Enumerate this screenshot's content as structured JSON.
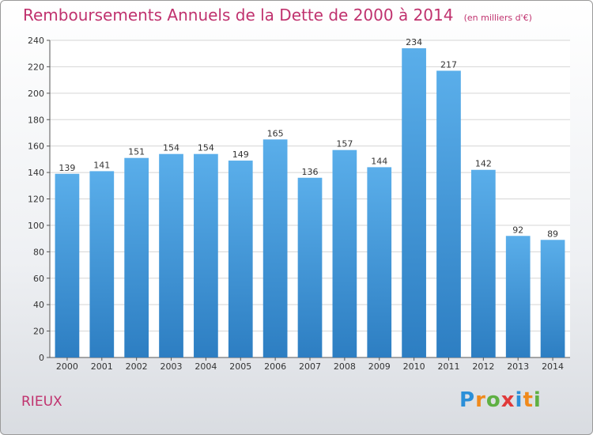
{
  "header": {
    "title": "Remboursements Annuels de la Dette de 2000 à 2014",
    "subtitle": "(en milliers d'€)"
  },
  "footer": {
    "town": "RIEUX",
    "logo_text": "Proxiti"
  },
  "colors": {
    "title": "#c0326e",
    "bar_top": "#5aaeea",
    "bar_bottom": "#2d7ec2",
    "grid": "#d5d5d5"
  },
  "chart_data": {
    "type": "bar",
    "title": "Remboursements Annuels de la Dette de 2000 à 2014",
    "xlabel": "",
    "ylabel": "",
    "categories": [
      "2000",
      "2001",
      "2002",
      "2003",
      "2004",
      "2005",
      "2006",
      "2007",
      "2008",
      "2009",
      "2010",
      "2011",
      "2012",
      "2013",
      "2014"
    ],
    "values": [
      139,
      141,
      151,
      154,
      154,
      149,
      165,
      136,
      157,
      144,
      234,
      217,
      142,
      92,
      89
    ],
    "ylim": [
      0,
      240
    ],
    "yticks": [
      0,
      20,
      40,
      60,
      80,
      100,
      120,
      140,
      160,
      180,
      200,
      220,
      240
    ],
    "grid": true,
    "legend": "none"
  }
}
